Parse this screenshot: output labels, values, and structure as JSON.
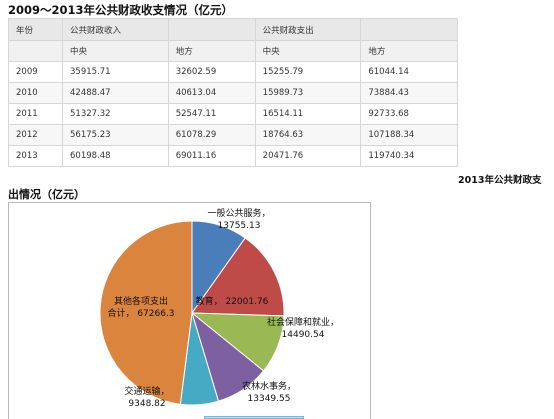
{
  "heading": "2009～2013年公共财政收支情况（亿元）",
  "table": {
    "header_year": "年份",
    "header_revenue": "公共财政收入",
    "header_expenditure": "公共财政支出",
    "sub_central": "中央",
    "sub_local": "地方",
    "rows": [
      {
        "year": "2009",
        "rev_central": "35915.71",
        "rev_local": "32602.59",
        "exp_central": "15255.79",
        "exp_local": "61044.14"
      },
      {
        "year": "2010",
        "rev_central": "42488.47",
        "rev_local": "40613.04",
        "exp_central": "15989.73",
        "exp_local": "73884.43"
      },
      {
        "year": "2011",
        "rev_central": "51327.32",
        "rev_local": "52547.11",
        "exp_central": "16514.11",
        "exp_local": "92733.68"
      },
      {
        "year": "2012",
        "rev_central": "56175.23",
        "rev_local": "61078.29",
        "exp_central": "18764.63",
        "exp_local": "107188.34"
      },
      {
        "year": "2013",
        "rev_central": "60198.48",
        "rev_local": "69011.16",
        "exp_central": "20471.76",
        "exp_local": "119740.34"
      }
    ]
  },
  "chart_title_part1": "2013年公共财政支",
  "chart_title_part2": "出情况（亿元）",
  "chart_data": {
    "type": "pie",
    "slices": [
      {
        "label": "一般公共服务，",
        "value_text": "13755.13",
        "value": 13755.13,
        "color": "#4a7ebb"
      },
      {
        "label": "教育，",
        "value_text": "22001.76",
        "value": 22001.76,
        "color": "#be4b48"
      },
      {
        "label": "社会保障和就业，",
        "value_text": "14490.54",
        "value": 14490.54,
        "color": "#98b954"
      },
      {
        "label": "农林水事务，",
        "value_text": "13349.55",
        "value": 13349.55,
        "color": "#7d60a0"
      },
      {
        "label": "交通运输，",
        "value_text": "9348.82",
        "value": 9348.82,
        "color": "#46aac5"
      },
      {
        "label": "其他各项支出合计，",
        "value_text": "67266.3",
        "value": 67266.3,
        "color": "#db843d"
      }
    ]
  }
}
